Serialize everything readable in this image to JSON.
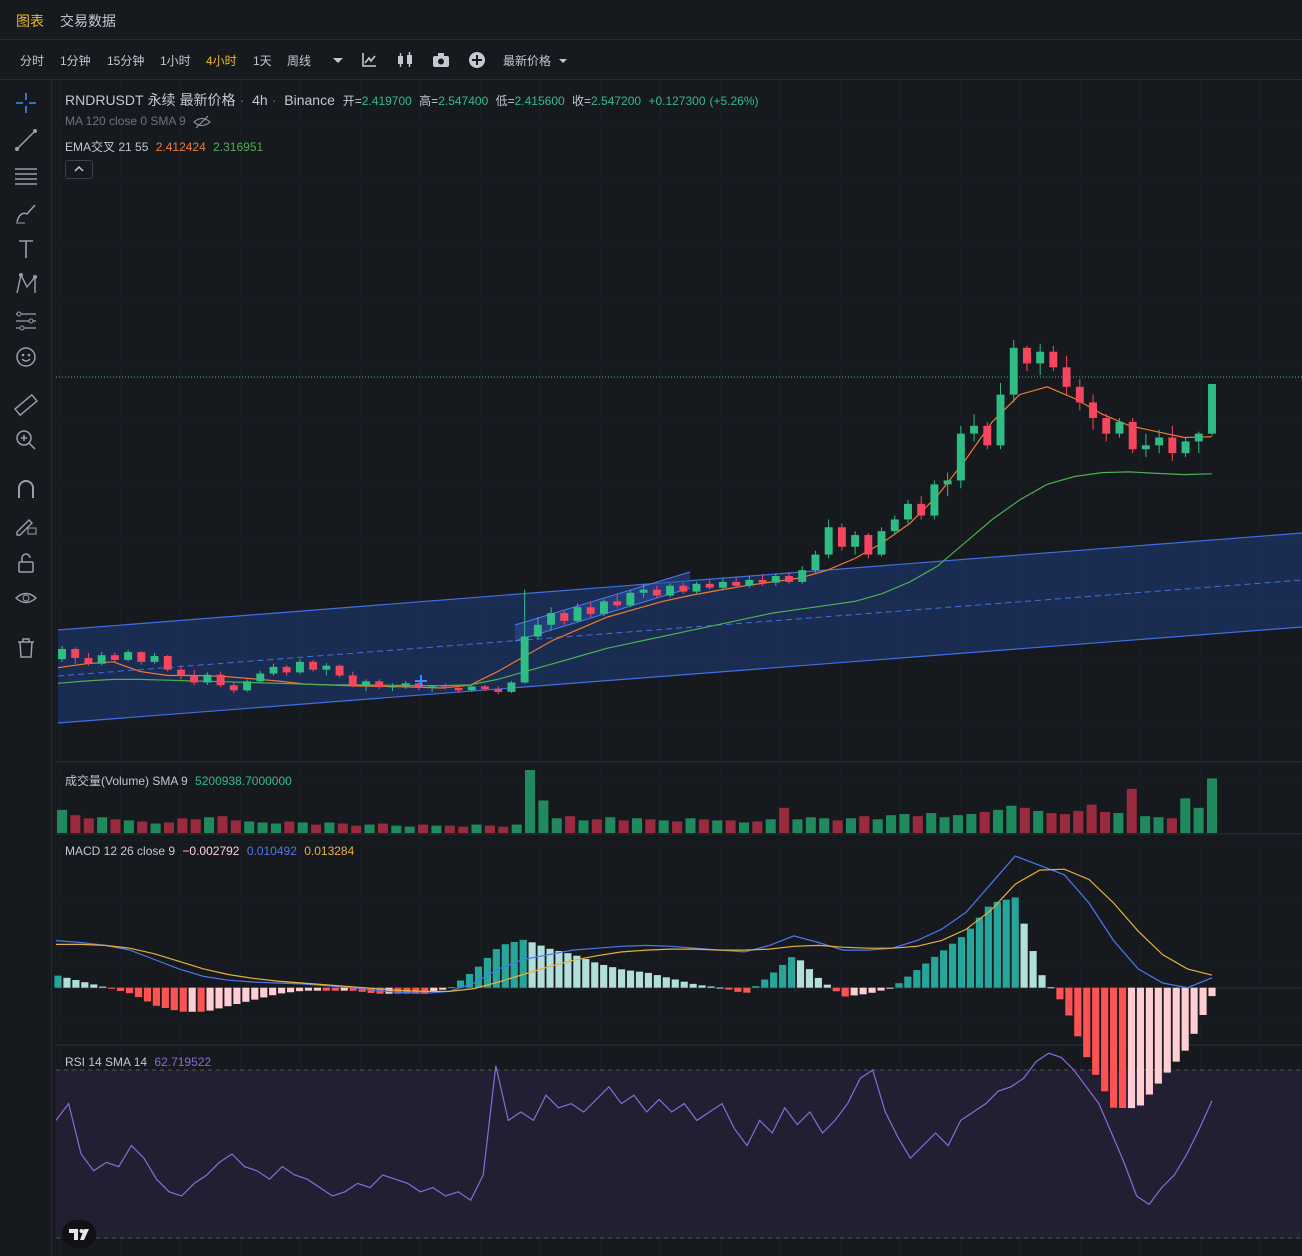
{
  "colors": {
    "bg": "#161a1f",
    "up": "#2ebd85",
    "down": "#f6465d",
    "active": "#f0b90b",
    "ema21": "#f07b2d",
    "ema55": "#4caf50",
    "macd": "#4a78f0",
    "signal": "#e8b03a",
    "rsi": "#8a6bd6",
    "channel": "#3f6fe0"
  },
  "top_tabs": [
    {
      "label": "图表",
      "active": true
    },
    {
      "label": "交易数据",
      "active": false
    }
  ],
  "toolbar": {
    "timeframes": [
      {
        "label": "分时",
        "active": false
      },
      {
        "label": "1分钟",
        "active": false
      },
      {
        "label": "15分钟",
        "active": false
      },
      {
        "label": "1小时",
        "active": false
      },
      {
        "label": "4小时",
        "active": true
      },
      {
        "label": "1天",
        "active": false
      },
      {
        "label": "周线",
        "active": false
      }
    ],
    "icons": [
      "chevron-down-icon",
      "indicators-icon",
      "chart-type-icon",
      "camera-icon",
      "add-icon"
    ],
    "price_type": "最新价格"
  },
  "sidebar_icons": [
    "crosshair-icon",
    "trend-line-icon",
    "fib-icon",
    "brush-icon",
    "text-icon",
    "pattern-icon",
    "measure-icon",
    "emoji-icon",
    "ruler-icon",
    "zoom-in-icon",
    "magnet-icon",
    "lock-drawing-icon",
    "unlock-icon",
    "eye-icon",
    "trash-icon"
  ],
  "symbol": {
    "pair": "RNDRUSDT",
    "contract": "永续",
    "price_type": "最新价格",
    "interval": "4h",
    "exchange": "Binance",
    "open_label": "开=",
    "open": "2.419700",
    "high_label": "高=",
    "high": "2.547400",
    "low_label": "低=",
    "low": "2.415600",
    "close_label": "收=",
    "close": "2.547200",
    "change": "+0.127300",
    "change_pct": "(+5.26%)"
  },
  "indicators": {
    "ma": "MA 120 close 0 SMA 9",
    "ema_label": "EMA交叉 21 55",
    "ema21": "2.412424",
    "ema55": "2.316951",
    "volume_label": "成交量(Volume) SMA 9",
    "volume_value": "5200938.7000000",
    "macd_label": "MACD 12 26 close 9",
    "macd_hist": "−0.002792",
    "macd_line": "0.010492",
    "macd_signal": "0.013284",
    "rsi_label": "RSI 14 SMA 14",
    "rsi_value": "62.719522"
  },
  "chart_data": {
    "type": "candlestick",
    "candles": [
      [
        1.842,
        1.876,
        1.835,
        1.868
      ],
      [
        1.868,
        1.872,
        1.83,
        1.845
      ],
      [
        1.845,
        1.858,
        1.825,
        1.83
      ],
      [
        1.83,
        1.86,
        1.826,
        1.852
      ],
      [
        1.852,
        1.859,
        1.832,
        1.84
      ],
      [
        1.84,
        1.866,
        1.836,
        1.86
      ],
      [
        1.86,
        1.862,
        1.828,
        1.835
      ],
      [
        1.835,
        1.858,
        1.83,
        1.85
      ],
      [
        1.85,
        1.853,
        1.81,
        1.815
      ],
      [
        1.815,
        1.826,
        1.79,
        1.8
      ],
      [
        1.8,
        1.814,
        1.775,
        1.782
      ],
      [
        1.782,
        1.808,
        1.776,
        1.802
      ],
      [
        1.802,
        1.81,
        1.77,
        1.775
      ],
      [
        1.775,
        1.784,
        1.755,
        1.762
      ],
      [
        1.762,
        1.79,
        1.758,
        1.785
      ],
      [
        1.785,
        1.812,
        1.78,
        1.805
      ],
      [
        1.805,
        1.83,
        1.8,
        1.822
      ],
      [
        1.822,
        1.826,
        1.8,
        1.808
      ],
      [
        1.808,
        1.842,
        1.804,
        1.835
      ],
      [
        1.835,
        1.84,
        1.81,
        1.815
      ],
      [
        1.815,
        1.832,
        1.8,
        1.825
      ],
      [
        1.825,
        1.828,
        1.795,
        1.8
      ],
      [
        1.8,
        1.81,
        1.77,
        1.775
      ],
      [
        1.775,
        1.79,
        1.76,
        1.785
      ],
      [
        1.785,
        1.79,
        1.765,
        1.77
      ],
      [
        1.77,
        1.78,
        1.76,
        1.772
      ],
      [
        1.772,
        1.786,
        1.766,
        1.78
      ],
      [
        1.78,
        1.784,
        1.762,
        1.768
      ],
      [
        1.768,
        1.776,
        1.758,
        1.772
      ],
      [
        1.772,
        1.78,
        1.765,
        1.768
      ],
      [
        1.768,
        1.774,
        1.756,
        1.762
      ],
      [
        1.762,
        1.776,
        1.758,
        1.772
      ],
      [
        1.772,
        1.776,
        1.76,
        1.765
      ],
      [
        1.765,
        1.772,
        1.752,
        1.758
      ],
      [
        1.758,
        1.786,
        1.755,
        1.782
      ],
      [
        1.782,
        2.02,
        1.78,
        1.9
      ],
      [
        1.9,
        1.95,
        1.892,
        1.93
      ],
      [
        1.93,
        1.975,
        1.915,
        1.96
      ],
      [
        1.96,
        1.965,
        1.93,
        1.94
      ],
      [
        1.94,
        1.985,
        1.935,
        1.975
      ],
      [
        1.975,
        1.99,
        1.95,
        1.958
      ],
      [
        1.958,
        1.995,
        1.952,
        1.99
      ],
      [
        1.99,
        2.01,
        1.975,
        1.98
      ],
      [
        1.98,
        2.02,
        1.976,
        2.012
      ],
      [
        2.012,
        2.035,
        2.0,
        2.02
      ],
      [
        2.02,
        2.03,
        1.998,
        2.005
      ],
      [
        2.005,
        2.036,
        2.0,
        2.03
      ],
      [
        2.03,
        2.038,
        2.01,
        2.015
      ],
      [
        2.015,
        2.04,
        2.01,
        2.035
      ],
      [
        2.035,
        2.045,
        2.02,
        2.025
      ],
      [
        2.025,
        2.05,
        2.02,
        2.04
      ],
      [
        2.04,
        2.052,
        2.025,
        2.03
      ],
      [
        2.03,
        2.055,
        2.025,
        2.045
      ],
      [
        2.045,
        2.06,
        2.03,
        2.038
      ],
      [
        2.038,
        2.062,
        2.03,
        2.055
      ],
      [
        2.055,
        2.065,
        2.035,
        2.04
      ],
      [
        2.04,
        2.08,
        2.035,
        2.07
      ],
      [
        2.07,
        2.12,
        2.06,
        2.11
      ],
      [
        2.11,
        2.2,
        2.1,
        2.18
      ],
      [
        2.18,
        2.19,
        2.12,
        2.13
      ],
      [
        2.13,
        2.17,
        2.11,
        2.16
      ],
      [
        2.16,
        2.165,
        2.1,
        2.11
      ],
      [
        2.11,
        2.18,
        2.105,
        2.17
      ],
      [
        2.17,
        2.21,
        2.16,
        2.2
      ],
      [
        2.2,
        2.25,
        2.19,
        2.24
      ],
      [
        2.24,
        2.26,
        2.2,
        2.21
      ],
      [
        2.21,
        2.3,
        2.2,
        2.29
      ],
      [
        2.29,
        2.32,
        2.26,
        2.3
      ],
      [
        2.3,
        2.44,
        2.28,
        2.42
      ],
      [
        2.42,
        2.47,
        2.4,
        2.44
      ],
      [
        2.44,
        2.45,
        2.38,
        2.39
      ],
      [
        2.39,
        2.55,
        2.38,
        2.52
      ],
      [
        2.52,
        2.66,
        2.5,
        2.64
      ],
      [
        2.64,
        2.645,
        2.58,
        2.6
      ],
      [
        2.6,
        2.65,
        2.57,
        2.63
      ],
      [
        2.63,
        2.645,
        2.58,
        2.59
      ],
      [
        2.59,
        2.62,
        2.52,
        2.54
      ],
      [
        2.54,
        2.56,
        2.48,
        2.5
      ],
      [
        2.5,
        2.52,
        2.43,
        2.46
      ],
      [
        2.46,
        2.47,
        2.4,
        2.42
      ],
      [
        2.42,
        2.46,
        2.41,
        2.45
      ],
      [
        2.45,
        2.46,
        2.37,
        2.38
      ],
      [
        2.38,
        2.42,
        2.36,
        2.39
      ],
      [
        2.39,
        2.43,
        2.37,
        2.41
      ],
      [
        2.41,
        2.44,
        2.35,
        2.37
      ],
      [
        2.37,
        2.41,
        2.36,
        2.4
      ],
      [
        2.4,
        2.425,
        2.37,
        2.42
      ],
      [
        2.42,
        2.5474,
        2.4156,
        2.5472
      ]
    ],
    "ema21": [
      1.82,
      1.83,
      1.835,
      1.81,
      1.8,
      1.8,
      1.798,
      1.792,
      1.786,
      1.778,
      1.775,
      1.773,
      1.772,
      1.77,
      1.768,
      1.775,
      1.81,
      1.85,
      1.89,
      1.92,
      1.95,
      1.97,
      1.99,
      2.005,
      2.018,
      2.03,
      2.04,
      2.05,
      2.07,
      2.1,
      2.14,
      2.19,
      2.26,
      2.35,
      2.45,
      2.52,
      2.54,
      2.51,
      2.47,
      2.44,
      2.425,
      2.41,
      2.412
    ],
    "ema55": [
      1.78,
      1.786,
      1.79,
      1.79,
      1.788,
      1.786,
      1.784,
      1.782,
      1.78,
      1.778,
      1.776,
      1.776,
      1.775,
      1.774,
      1.774,
      1.776,
      1.79,
      1.81,
      1.83,
      1.85,
      1.87,
      1.885,
      1.9,
      1.915,
      1.93,
      1.945,
      1.96,
      1.97,
      1.98,
      1.99,
      2.01,
      2.04,
      2.08,
      2.14,
      2.2,
      2.25,
      2.29,
      2.31,
      2.32,
      2.322,
      2.318,
      2.315,
      2.317
    ],
    "volume": [
      2.2,
      1.7,
      1.4,
      1.5,
      1.3,
      1.2,
      1.1,
      0.9,
      1.0,
      1.4,
      1.3,
      1.5,
      1.6,
      1.2,
      1.1,
      1.0,
      0.9,
      1.1,
      1.0,
      0.8,
      1.0,
      0.9,
      0.7,
      0.8,
      0.9,
      0.7,
      0.6,
      0.8,
      0.7,
      0.7,
      0.6,
      0.8,
      0.7,
      0.6,
      0.8,
      6.0,
      3.1,
      1.4,
      1.6,
      1.2,
      1.3,
      1.5,
      1.2,
      1.4,
      1.3,
      1.2,
      1.1,
      1.4,
      1.3,
      1.2,
      1.2,
      1.0,
      1.1,
      1.3,
      2.4,
      1.3,
      1.5,
      1.4,
      1.2,
      1.4,
      1.6,
      1.3,
      1.7,
      1.8,
      1.6,
      1.9,
      1.5,
      1.7,
      1.8,
      2.0,
      2.2,
      2.6,
      2.4,
      2.1,
      1.9,
      1.8,
      2.1,
      2.7,
      2.0,
      1.9,
      4.2,
      1.6,
      1.5,
      1.4,
      3.3,
      2.4,
      5.2
    ],
    "macd": [
      0.05,
      0.048,
      0.045,
      0.04,
      0.03,
      0.02,
      0.012,
      0.008,
      0.006,
      0.005,
      0.004,
      0.002,
      0.0,
      -0.003,
      -0.005,
      -0.006,
      -0.004,
      0.005,
      0.02,
      0.03,
      0.035,
      0.04,
      0.042,
      0.044,
      0.045,
      0.044,
      0.042,
      0.04,
      0.038,
      0.045,
      0.055,
      0.048,
      0.04,
      0.04,
      0.042,
      0.05,
      0.062,
      0.08,
      0.11,
      0.14,
      0.13,
      0.12,
      0.09,
      0.05,
      0.02,
      0.005,
      0.0,
      0.0105
    ],
    "signal": [
      0.046,
      0.046,
      0.045,
      0.042,
      0.036,
      0.028,
      0.02,
      0.014,
      0.01,
      0.007,
      0.005,
      0.003,
      0.001,
      -0.001,
      -0.003,
      -0.004,
      -0.004,
      -0.001,
      0.006,
      0.014,
      0.022,
      0.029,
      0.034,
      0.038,
      0.04,
      0.041,
      0.041,
      0.04,
      0.04,
      0.041,
      0.044,
      0.045,
      0.043,
      0.042,
      0.042,
      0.044,
      0.05,
      0.062,
      0.082,
      0.11,
      0.125,
      0.126,
      0.115,
      0.09,
      0.06,
      0.035,
      0.02,
      0.0133
    ],
    "rsi": [
      58,
      62,
      50,
      46,
      48,
      47,
      52,
      49,
      44,
      41,
      40,
      43,
      45,
      48,
      50,
      47,
      46,
      44,
      47,
      45,
      44,
      42,
      40,
      41,
      43,
      42,
      45,
      44,
      43,
      41,
      42,
      40,
      41,
      39,
      45,
      71,
      58,
      60,
      58,
      64,
      61,
      62,
      60,
      63,
      66,
      62,
      64,
      60,
      63,
      60,
      62,
      58,
      60,
      62,
      56,
      52,
      58,
      55,
      61,
      57,
      60,
      55,
      58,
      62,
      68,
      70,
      60,
      54,
      49,
      52,
      55,
      52,
      58,
      60,
      62,
      65,
      66,
      68,
      72,
      74,
      73,
      70,
      66,
      62,
      55,
      48,
      40,
      38,
      42,
      45,
      50,
      56,
      62.7
    ],
    "rsi_levels": [
      70,
      30
    ]
  }
}
